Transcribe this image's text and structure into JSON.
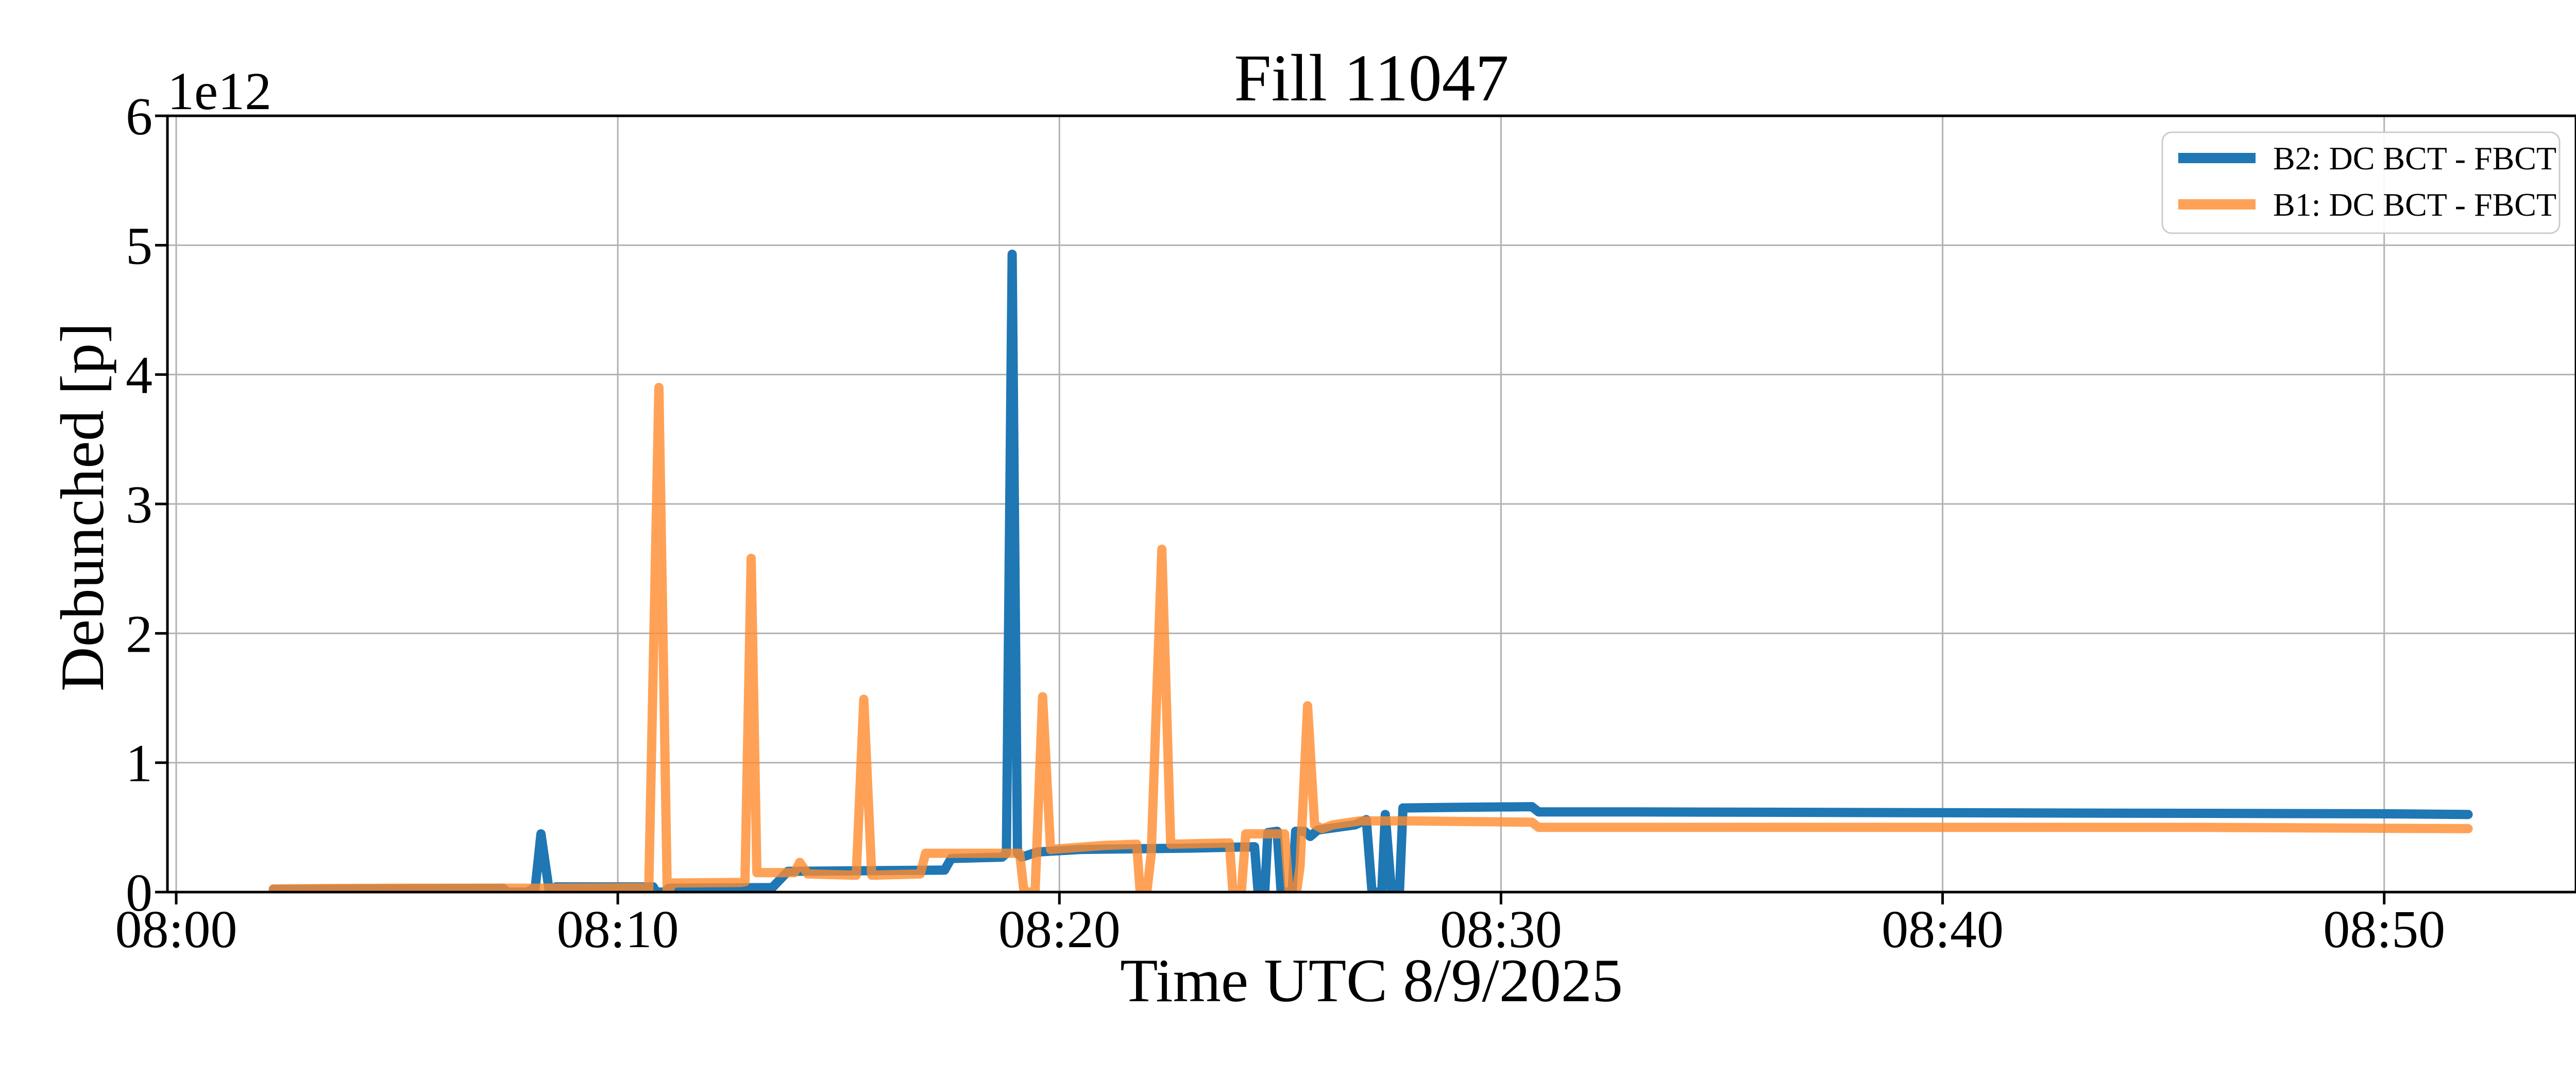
{
  "chart_data": {
    "type": "line",
    "title": "Fill 11047",
    "xlabel": "Time UTC 8/9/2025",
    "ylabel": "Debunched [p]",
    "offset_text": "1e12",
    "grid": true,
    "legend_position": "upper right",
    "xlim_minutes_after_0800": [
      -0.2,
      54.4
    ],
    "ylim": [
      0,
      6
    ],
    "x_ticks": [
      {
        "t": 0,
        "label": "08:00"
      },
      {
        "t": 10,
        "label": "08:10"
      },
      {
        "t": 20,
        "label": "08:20"
      },
      {
        "t": 30,
        "label": "08:30"
      },
      {
        "t": 40,
        "label": "08:40"
      },
      {
        "t": 50,
        "label": "08:50"
      }
    ],
    "y_ticks": [
      {
        "v": 0,
        "label": "0"
      },
      {
        "v": 1,
        "label": "1"
      },
      {
        "v": 2,
        "label": "2"
      },
      {
        "v": 3,
        "label": "3"
      },
      {
        "v": 4,
        "label": "4"
      },
      {
        "v": 5,
        "label": "5"
      },
      {
        "v": 6,
        "label": "6"
      }
    ],
    "colors": {
      "b2_blue": "#1f77b4",
      "b1_orange": "#ff8b2d",
      "b1_orange_rendered": "#faa55c",
      "grid": "#b2b2b2",
      "legend_border": "#cccccc"
    },
    "series": [
      {
        "name": "B2: DC BCT - FBCT",
        "color": "#1f77b4",
        "opacity": 1.0,
        "units": "minutes after 08:00, value in 1e12 p",
        "points": [
          [
            2.2,
            0.02
          ],
          [
            5.0,
            0.025
          ],
          [
            7.4,
            0.03
          ],
          [
            7.5,
            0.0
          ],
          [
            7.95,
            0.0
          ],
          [
            8.05,
            0.02
          ],
          [
            8.12,
            0.0
          ],
          [
            8.26,
            0.45
          ],
          [
            8.45,
            0.0
          ],
          [
            8.6,
            0.04
          ],
          [
            10.8,
            0.04
          ],
          [
            10.87,
            0.0
          ],
          [
            11.05,
            0.0
          ],
          [
            11.15,
            0.03
          ],
          [
            13.5,
            0.035
          ],
          [
            13.85,
            0.16
          ],
          [
            17.4,
            0.17
          ],
          [
            17.55,
            0.26
          ],
          [
            18.7,
            0.27
          ],
          [
            18.8,
            0.3
          ],
          [
            18.93,
            4.93
          ],
          [
            19.05,
            0.3
          ],
          [
            19.15,
            0.27
          ],
          [
            19.5,
            0.31
          ],
          [
            20.5,
            0.33
          ],
          [
            23.0,
            0.34
          ],
          [
            24.42,
            0.35
          ],
          [
            24.5,
            0.0
          ],
          [
            24.65,
            0.0
          ],
          [
            24.72,
            0.46
          ],
          [
            24.93,
            0.47
          ],
          [
            25.02,
            0.0
          ],
          [
            25.27,
            0.0
          ],
          [
            25.35,
            0.47
          ],
          [
            25.55,
            0.47
          ],
          [
            25.68,
            0.43
          ],
          [
            25.85,
            0.48
          ],
          [
            26.7,
            0.52
          ],
          [
            26.95,
            0.56
          ],
          [
            27.08,
            0.0
          ],
          [
            27.3,
            0.0
          ],
          [
            27.38,
            0.6
          ],
          [
            27.52,
            0.0
          ],
          [
            27.7,
            0.0
          ],
          [
            27.78,
            0.65
          ],
          [
            29.0,
            0.655
          ],
          [
            30.7,
            0.66
          ],
          [
            30.85,
            0.62
          ],
          [
            33.0,
            0.62
          ],
          [
            38.0,
            0.615
          ],
          [
            44.0,
            0.61
          ],
          [
            50.0,
            0.605
          ],
          [
            51.9,
            0.6
          ]
        ]
      },
      {
        "name": "B1: DC BCT - FBCT",
        "color": "#ff8b2d",
        "opacity": 0.8,
        "units": "minutes after 08:00, value in 1e12 p",
        "points": [
          [
            2.2,
            0.025
          ],
          [
            5.0,
            0.03
          ],
          [
            8.0,
            0.03
          ],
          [
            10.6,
            0.035
          ],
          [
            10.7,
            0.0
          ],
          [
            10.93,
            3.9
          ],
          [
            11.12,
            0.0
          ],
          [
            11.25,
            0.07
          ],
          [
            12.8,
            0.075
          ],
          [
            12.88,
            0.08
          ],
          [
            13.02,
            2.58
          ],
          [
            13.15,
            0.15
          ],
          [
            14.0,
            0.15
          ],
          [
            14.12,
            0.23
          ],
          [
            14.3,
            0.14
          ],
          [
            15.4,
            0.13
          ],
          [
            15.57,
            1.49
          ],
          [
            15.75,
            0.13
          ],
          [
            16.85,
            0.14
          ],
          [
            16.97,
            0.3
          ],
          [
            19.1,
            0.3
          ],
          [
            19.2,
            0.0
          ],
          [
            19.45,
            0.0
          ],
          [
            19.62,
            1.51
          ],
          [
            19.8,
            0.33
          ],
          [
            21.0,
            0.36
          ],
          [
            21.75,
            0.37
          ],
          [
            21.83,
            0.0
          ],
          [
            21.98,
            0.0
          ],
          [
            22.08,
            0.3
          ],
          [
            22.32,
            2.65
          ],
          [
            22.52,
            0.37
          ],
          [
            23.85,
            0.38
          ],
          [
            23.93,
            0.0
          ],
          [
            24.12,
            0.0
          ],
          [
            24.22,
            0.45
          ],
          [
            25.1,
            0.45
          ],
          [
            25.2,
            0.0
          ],
          [
            25.37,
            0.0
          ],
          [
            25.45,
            0.2
          ],
          [
            25.62,
            1.44
          ],
          [
            25.78,
            0.52
          ],
          [
            25.95,
            0.49
          ],
          [
            26.2,
            0.52
          ],
          [
            26.8,
            0.55
          ],
          [
            28.0,
            0.55
          ],
          [
            30.7,
            0.54
          ],
          [
            30.85,
            0.5
          ],
          [
            35.0,
            0.5
          ],
          [
            40.0,
            0.5
          ],
          [
            46.0,
            0.5
          ],
          [
            51.9,
            0.49
          ]
        ]
      }
    ]
  }
}
